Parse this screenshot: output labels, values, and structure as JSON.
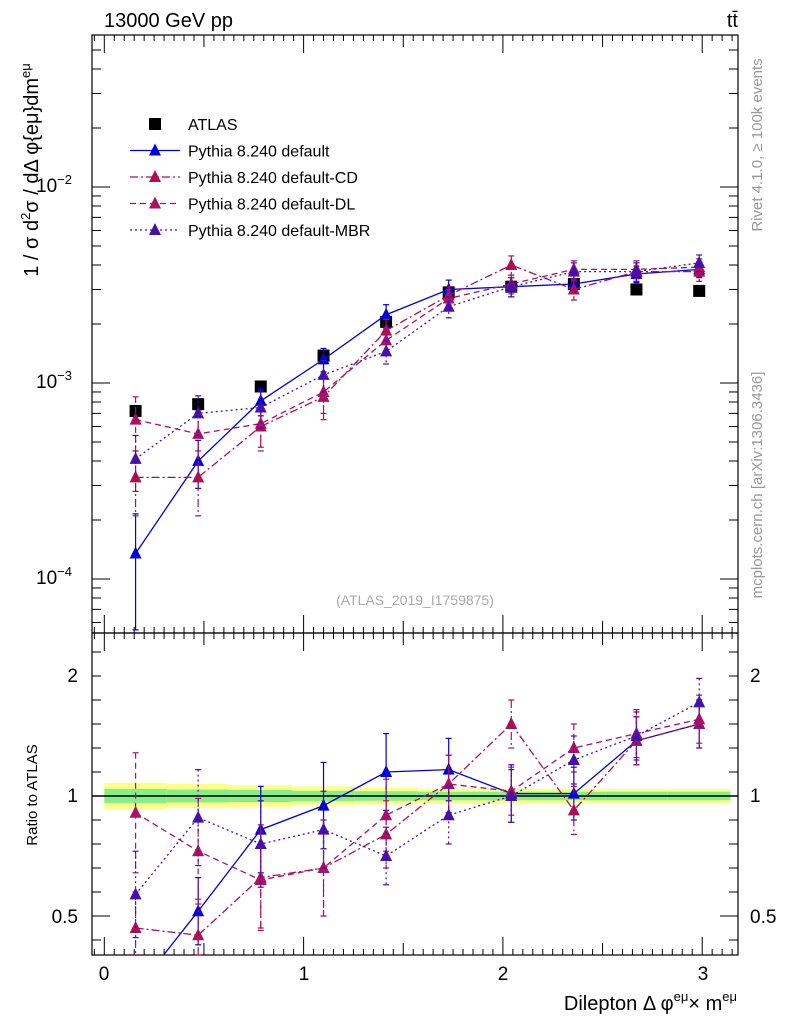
{
  "header": {
    "energy_label": "13000 GeV pp",
    "process_label": "tt̄",
    "side_top": "Rivet 4.1.0, ≥ 100k events",
    "side_bottom": "mcplots.cern.ch [arXiv:1306.3436]",
    "analysis_id": "(ATLAS_2019_I1759875)"
  },
  "colors": {
    "atlas": "#000000",
    "default": "#0000dd",
    "cd": "#aa1155",
    "dl": "#aa1166",
    "mbr": "#4411aa",
    "band_outer": "#ffff88",
    "band_inner": "#88ee88"
  },
  "chart_data": [
    {
      "type": "scatter",
      "panel": "main",
      "title": "",
      "xlabel": "Dilepton Δ φ^{eμ} × m^{eμ}",
      "ylabel": "1 / σ  d²σ / dΔ φ{eμ}dm^{eμ}",
      "yscale": "log",
      "xlim": [
        -0.1,
        3.2
      ],
      "ylim": [
        5e-05,
        0.06
      ],
      "ytick_labels": [
        "10^{-4}",
        "10^{-3}",
        "10^{-2}"
      ],
      "legend_position": "top-left",
      "x": [
        0.157,
        0.471,
        0.785,
        1.1,
        1.414,
        1.728,
        2.042,
        2.356,
        2.67,
        2.985
      ],
      "series": [
        {
          "name": "ATLAS",
          "style": "markers-square",
          "values": [
            0.00072,
            0.00078,
            0.00096,
            0.00138,
            0.00205,
            0.0029,
            0.0031,
            0.0032,
            0.003,
            0.00295
          ],
          "errors": [
            3e-05,
            3e-05,
            3e-05,
            4e-05,
            5e-05,
            6e-05,
            6e-05,
            6e-05,
            6e-05,
            6e-05
          ]
        },
        {
          "name": "Pythia 8.240 default",
          "style": "solid",
          "values": [
            0.000135,
            0.0004,
            0.00081,
            0.00132,
            0.00223,
            0.003,
            0.0031,
            0.0032,
            0.0036,
            0.0038
          ],
          "errors": [
            8e-05,
            0.00011,
            0.00013,
            0.00018,
            0.00028,
            0.00035,
            0.00035,
            0.00035,
            0.00035,
            0.00035
          ]
        },
        {
          "name": "Pythia 8.240 default-CD",
          "style": "dashdot",
          "values": [
            0.00033,
            0.00033,
            0.0006,
            0.00085,
            0.00185,
            0.0028,
            0.004,
            0.003,
            0.0037,
            0.0037
          ],
          "errors": [
            0.00012,
            0.00012,
            0.00015,
            0.0002,
            0.00026,
            0.0003,
            0.00045,
            0.00035,
            0.0004,
            0.0004
          ]
        },
        {
          "name": "Pythia 8.240 default-DL",
          "style": "dashed",
          "values": [
            0.00065,
            0.00055,
            0.00062,
            0.0009,
            0.00165,
            0.0027,
            0.0032,
            0.0038,
            0.0038,
            0.0039
          ],
          "errors": [
            0.0002,
            0.00017,
            0.00015,
            0.0002,
            0.00025,
            0.0003,
            0.00035,
            0.0004,
            0.0004,
            0.0004
          ]
        },
        {
          "name": "Pythia 8.240 default-MBR",
          "style": "dotted",
          "values": [
            0.00041,
            0.0007,
            0.00075,
            0.0011,
            0.00145,
            0.00245,
            0.0031,
            0.0037,
            0.0037,
            0.0041
          ],
          "errors": [
            0.00013,
            0.00016,
            0.00016,
            0.0002,
            0.0002,
            0.0003,
            0.00035,
            0.0004,
            0.0004,
            0.0004
          ]
        }
      ]
    },
    {
      "type": "line",
      "panel": "ratio",
      "ylabel": "Ratio to ATLAS",
      "xlabel": "Dilepton Δ φ^{eμ} × m^{eμ}",
      "xlim": [
        -0.1,
        3.2
      ],
      "ylim": [
        0.35,
        2.45
      ],
      "ytick_labels": [
        "0.5",
        "1",
        "2"
      ],
      "xtick_labels": [
        "0",
        "1",
        "2",
        "3"
      ],
      "x": [
        0.157,
        0.471,
        0.785,
        1.1,
        1.414,
        1.728,
        2.042,
        2.356,
        2.67,
        2.985
      ],
      "band_edges": [
        0.0,
        0.314,
        0.628,
        0.942,
        1.257,
        1.571,
        1.885,
        2.199,
        2.513,
        2.827,
        3.142
      ],
      "band_outer_halfwidth": [
        0.055,
        0.05,
        0.045,
        0.04,
        0.035,
        0.03,
        0.03,
        0.03,
        0.03,
        0.03
      ],
      "band_inner_halfwidth": [
        0.03,
        0.027,
        0.025,
        0.022,
        0.02,
        0.018,
        0.018,
        0.018,
        0.018,
        0.018
      ],
      "series": [
        {
          "name": "Pythia 8.240 default",
          "values": [
            0.19,
            0.52,
            0.86,
            0.96,
            1.1,
            1.11,
            1.01,
            1.01,
            1.23,
            1.3
          ],
          "errors": [
            0.1,
            0.14,
            0.18,
            0.18,
            0.16,
            0.13,
            0.12,
            0.11,
            0.1,
            0.1
          ]
        },
        {
          "name": "Pythia 8.240 default-CD",
          "values": [
            0.45,
            0.42,
            0.66,
            0.7,
            0.84,
            1.05,
            1.3,
            0.94,
            1.23,
            1.3
          ],
          "errors": [
            0.15,
            0.15,
            0.22,
            0.2,
            0.14,
            0.12,
            0.1,
            0.1,
            0.1,
            0.1
          ]
        },
        {
          "name": "Pythia 8.240 default-DL",
          "values": [
            0.93,
            0.77,
            0.65,
            0.7,
            0.92,
            1.05,
            1.02,
            1.2,
            1.26,
            1.32
          ],
          "errors": [
            0.25,
            0.22,
            0.2,
            0.2,
            0.15,
            0.12,
            0.1,
            0.1,
            0.1,
            0.1
          ]
        },
        {
          "name": "Pythia 8.240 default-MBR",
          "values": [
            0.59,
            0.91,
            0.8,
            0.86,
            0.75,
            0.92,
            1.0,
            1.15,
            1.25,
            1.39
          ],
          "errors": [
            0.18,
            0.2,
            0.18,
            0.16,
            0.12,
            0.12,
            0.11,
            0.1,
            0.1,
            0.1
          ]
        }
      ]
    }
  ]
}
